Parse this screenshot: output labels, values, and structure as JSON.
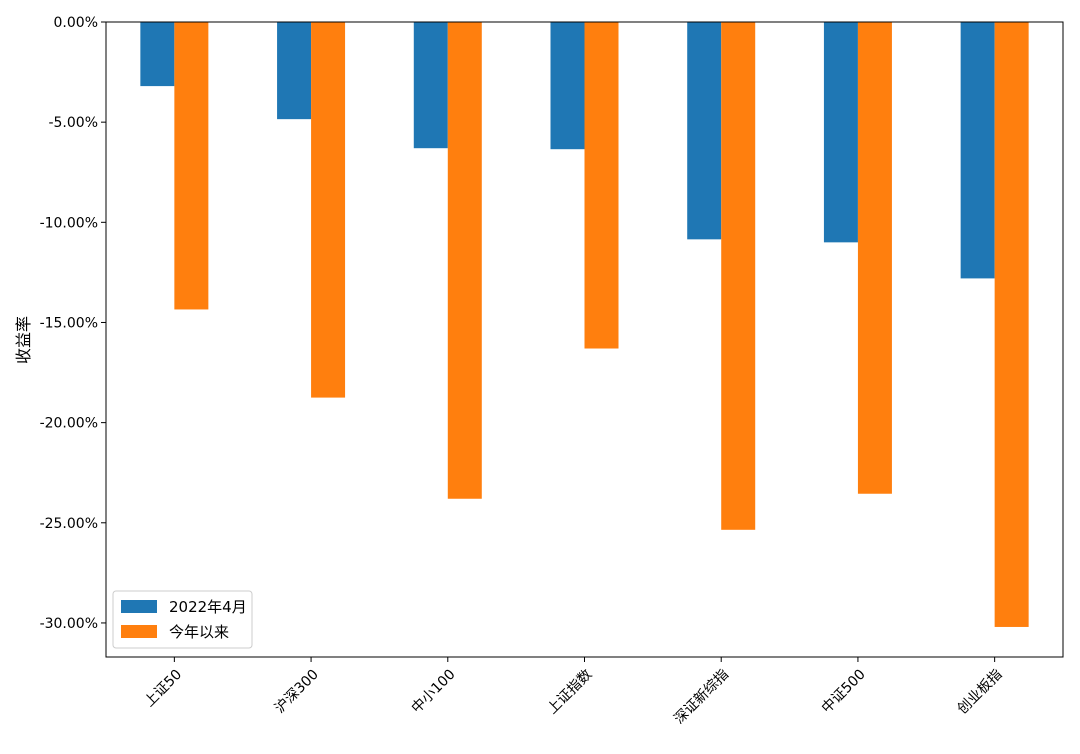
{
  "chart_data": {
    "type": "bar",
    "title": "",
    "xlabel": "",
    "ylabel": "收益率",
    "categories": [
      "上证50",
      "沪深300",
      "中小100",
      "上证指数",
      "深证新综指",
      "中证500",
      "创业板指"
    ],
    "series": [
      {
        "name": "2022年4月",
        "color": "#1f77b4",
        "values": [
          -3.2,
          -4.85,
          -6.3,
          -6.35,
          -10.85,
          -11.0,
          -12.8
        ]
      },
      {
        "name": "今年以来",
        "color": "#ff7f0e",
        "values": [
          -14.35,
          -18.75,
          -23.8,
          -16.3,
          -25.35,
          -23.55,
          -30.2
        ]
      }
    ],
    "ylim": [
      -31.7,
      0.0
    ],
    "yticks": [
      0,
      -5,
      -10,
      -15,
      -20,
      -25,
      -30
    ],
    "ytick_labels": [
      "0.00%",
      "-5.00%",
      "-10.00%",
      "-15.00%",
      "-20.00%",
      "-25.00%",
      "-30.00%"
    ],
    "legend_position": "lower-left",
    "grid": false
  }
}
